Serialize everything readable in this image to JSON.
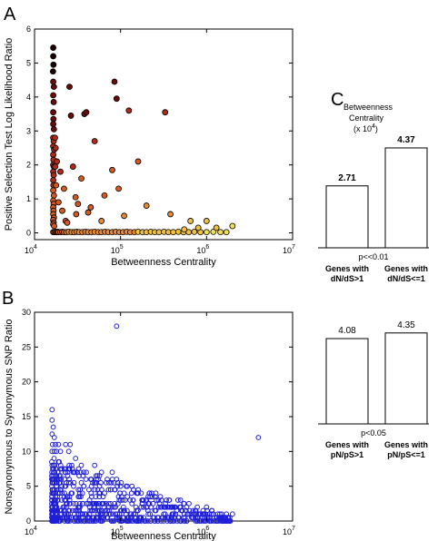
{
  "panels": {
    "a_letter": "A",
    "b_letter": "B",
    "c_letter": "C"
  },
  "chart_data": [
    {
      "panel": "A",
      "type": "scatter",
      "xlabel": "Betweenness Centrality",
      "ylabel": "Positive Selection Test Log Likelihood Ratio",
      "xscale": "log",
      "xlim": [
        10000,
        10000000
      ],
      "ylim": [
        -0.2,
        6
      ],
      "xtick_base": "10",
      "xtick_exponents": [
        "4",
        "5",
        "6",
        "7"
      ],
      "yticks": [
        "0",
        "1",
        "2",
        "3",
        "4",
        "5",
        "6"
      ],
      "colormap": [
        "#1a0000",
        "#6b0a0a",
        "#b02a18",
        "#d45a20",
        "#e88a30",
        "#f0c040",
        "#f0e050"
      ],
      "marker_edge": "#000000",
      "grid": false,
      "points": [
        [
          16500,
          5.45
        ],
        [
          16500,
          5.2
        ],
        [
          16600,
          4.95
        ],
        [
          16400,
          4.75
        ],
        [
          16500,
          4.45
        ],
        [
          16800,
          4.3
        ],
        [
          16500,
          4.05
        ],
        [
          16700,
          3.85
        ],
        [
          16500,
          3.55
        ],
        [
          16600,
          3.35
        ],
        [
          16500,
          3.2
        ],
        [
          16800,
          3.05
        ],
        [
          16500,
          2.8
        ],
        [
          16700,
          2.7
        ],
        [
          16500,
          2.55
        ],
        [
          16900,
          2.45
        ],
        [
          16500,
          2.3
        ],
        [
          16600,
          2.15
        ],
        [
          16500,
          2.0
        ],
        [
          16800,
          1.95
        ],
        [
          16500,
          1.8
        ],
        [
          16700,
          1.7
        ],
        [
          16500,
          1.55
        ],
        [
          16600,
          1.4
        ],
        [
          16500,
          1.25
        ],
        [
          16800,
          1.1
        ],
        [
          16500,
          0.95
        ],
        [
          16700,
          0.85
        ],
        [
          16500,
          0.75
        ],
        [
          16600,
          0.65
        ],
        [
          16500,
          0.55
        ],
        [
          16800,
          0.45
        ],
        [
          16500,
          0.38
        ],
        [
          16700,
          0.3
        ],
        [
          16500,
          0.25
        ],
        [
          16900,
          0.2
        ],
        [
          17300,
          2.8
        ],
        [
          17600,
          2.5
        ],
        [
          17400,
          1.95
        ],
        [
          17800,
          1.4
        ],
        [
          18200,
          2.1
        ],
        [
          19000,
          0.9
        ],
        [
          20000,
          1.8
        ],
        [
          21000,
          0.65
        ],
        [
          22000,
          1.3
        ],
        [
          23000,
          0.35
        ],
        [
          24000,
          0.3
        ],
        [
          25500,
          4.3
        ],
        [
          26500,
          3.45
        ],
        [
          28000,
          1.95
        ],
        [
          30000,
          1.05
        ],
        [
          30500,
          0.55
        ],
        [
          32000,
          0.85
        ],
        [
          35000,
          1.6
        ],
        [
          38000,
          3.5
        ],
        [
          40000,
          3.55
        ],
        [
          42000,
          0.6
        ],
        [
          45000,
          0.75
        ],
        [
          50000,
          2.7
        ],
        [
          60000,
          0.35
        ],
        [
          65000,
          1.1
        ],
        [
          80000,
          1.85
        ],
        [
          85000,
          4.45
        ],
        [
          90000,
          3.95
        ],
        [
          95000,
          1.3
        ],
        [
          110000,
          0.5
        ],
        [
          125000,
          3.6
        ],
        [
          160000,
          2.1
        ],
        [
          200000,
          0.8
        ],
        [
          330000,
          3.55
        ],
        [
          380000,
          0.55
        ],
        [
          550000,
          0.1
        ],
        [
          650000,
          0.35
        ],
        [
          800000,
          0.15
        ],
        [
          1000000,
          0.35
        ],
        [
          1300000,
          0.15
        ],
        [
          2000000,
          0.2
        ]
      ],
      "baseline_points": [
        [
          16500,
          0.02
        ],
        [
          17000,
          0.02
        ],
        [
          17500,
          0.03
        ],
        [
          18000,
          0.02
        ],
        [
          18500,
          0.03
        ],
        [
          19000,
          0.02
        ],
        [
          20000,
          0.02
        ],
        [
          21000,
          0.03
        ],
        [
          22000,
          0.02
        ],
        [
          23500,
          0.02
        ],
        [
          25000,
          0.03
        ],
        [
          27000,
          0.02
        ],
        [
          29000,
          0.02
        ],
        [
          31000,
          0.03
        ],
        [
          33000,
          0.02
        ],
        [
          36000,
          0.02
        ],
        [
          39000,
          0.03
        ],
        [
          42000,
          0.02
        ],
        [
          46000,
          0.02
        ],
        [
          50000,
          0.03
        ],
        [
          55000,
          0.02
        ],
        [
          60000,
          0.02
        ],
        [
          66000,
          0.03
        ],
        [
          72000,
          0.02
        ],
        [
          80000,
          0.02
        ],
        [
          88000,
          0.03
        ],
        [
          97000,
          0.02
        ],
        [
          107000,
          0.02
        ],
        [
          118000,
          0.03
        ],
        [
          130000,
          0.02
        ],
        [
          145000,
          0.02
        ],
        [
          160000,
          0.03
        ],
        [
          180000,
          0.02
        ],
        [
          200000,
          0.02
        ],
        [
          225000,
          0.03
        ],
        [
          250000,
          0.02
        ],
        [
          280000,
          0.02
        ],
        [
          320000,
          0.03
        ],
        [
          360000,
          0.02
        ],
        [
          410000,
          0.02
        ],
        [
          470000,
          0.03
        ],
        [
          540000,
          0.02
        ],
        [
          620000,
          0.02
        ],
        [
          720000,
          0.03
        ],
        [
          850000,
          0.02
        ],
        [
          1000000,
          0.02
        ],
        [
          1200000,
          0.03
        ],
        [
          1450000,
          0.02
        ],
        [
          1700000,
          0.02
        ]
      ]
    },
    {
      "panel": "B",
      "type": "scatter",
      "xlabel": "Betweenness Centrality",
      "ylabel": "Nonsynonymous to Synonymous SNP Ratio",
      "xscale": "log",
      "xlim": [
        10000,
        10000000
      ],
      "ylim": [
        0,
        30
      ],
      "xtick_base": "10",
      "xtick_exponents": [
        "4",
        "5",
        "6",
        "7"
      ],
      "yticks": [
        "0",
        "5",
        "10",
        "15",
        "20",
        "25",
        "30"
      ],
      "marker": "open-circle",
      "color": "#1f1fd6",
      "grid": false,
      "points": [
        [
          90000,
          28
        ],
        [
          4000000,
          12
        ],
        [
          16000,
          16
        ],
        [
          16000,
          14.5
        ],
        [
          16500,
          13.5
        ],
        [
          16000,
          12.5
        ],
        [
          17000,
          12
        ],
        [
          16200,
          11
        ],
        [
          17500,
          11
        ],
        [
          19000,
          11
        ],
        [
          23000,
          11
        ],
        [
          26000,
          11
        ],
        [
          16000,
          10
        ],
        [
          17000,
          10
        ],
        [
          18000,
          10
        ],
        [
          20000,
          10
        ],
        [
          25000,
          10
        ],
        [
          30000,
          9
        ],
        [
          35000,
          8
        ],
        [
          40000,
          7
        ],
        [
          50000,
          8
        ],
        [
          60000,
          7
        ],
        [
          45000,
          6
        ],
        [
          70000,
          6
        ],
        [
          80000,
          7
        ],
        [
          90000,
          6
        ],
        [
          100000,
          5
        ],
        [
          110000,
          4
        ],
        [
          120000,
          5
        ],
        [
          140000,
          3
        ],
        [
          160000,
          4
        ],
        [
          180000,
          3
        ],
        [
          200000,
          2
        ],
        [
          230000,
          4
        ],
        [
          260000,
          3
        ],
        [
          300000,
          3
        ],
        [
          350000,
          2
        ],
        [
          400000,
          2
        ],
        [
          500000,
          2
        ],
        [
          600000,
          1
        ],
        [
          700000,
          1
        ],
        [
          850000,
          1
        ],
        [
          1000000,
          2
        ],
        [
          1200000,
          1
        ],
        [
          1500000,
          1
        ],
        [
          1700000,
          1
        ],
        [
          2000000,
          1
        ]
      ]
    },
    {
      "panel": "C-top",
      "type": "bar",
      "title": "Betweenness Centrality",
      "unit_label": "(x 10",
      "unit_exp": "4",
      "unit_close": ")",
      "categories": [
        "Genes with dN/dS>1",
        "Genes with dN/dS<=1"
      ],
      "category_lines": [
        [
          "Genes with",
          "dN/dS>1"
        ],
        [
          "Genes with",
          "dN/dS<=1"
        ]
      ],
      "values": [
        2.71,
        4.37
      ],
      "value_labels": [
        "2.71",
        "4.37"
      ],
      "ylim": [
        0,
        5.6
      ],
      "annotation": "p<<0.01"
    },
    {
      "panel": "C-bottom",
      "type": "bar",
      "categories": [
        "Genes with pN/pS>1",
        "Genes with pN/pS<=1"
      ],
      "category_lines": [
        [
          "Genes with",
          "pN/pS>1"
        ],
        [
          "Genes with",
          "pN/pS<=1"
        ]
      ],
      "values": [
        4.08,
        4.35
      ],
      "value_labels": [
        "4.08",
        "4.35"
      ],
      "ylim": [
        0,
        5.6
      ],
      "annotation": "p<0.05"
    }
  ]
}
